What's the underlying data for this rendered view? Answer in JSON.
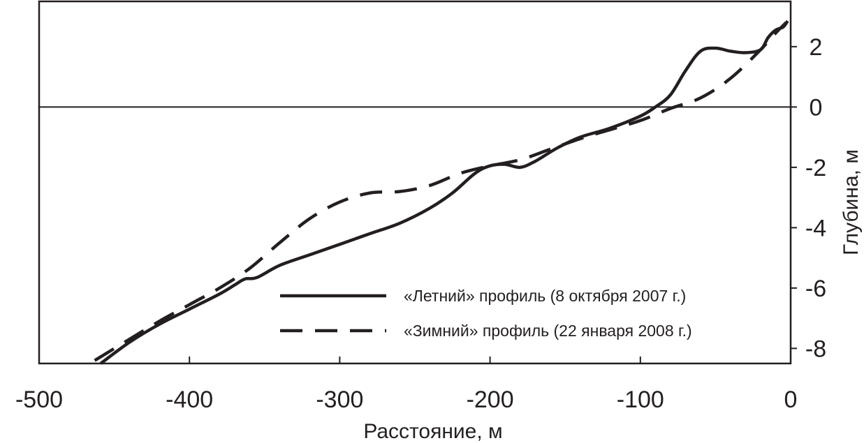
{
  "chart_data": {
    "type": "line",
    "xlabel": "Расстояние, м",
    "ylabel": "Глубина, м",
    "xlim": [
      -500,
      0
    ],
    "ylim": [
      -8.5,
      3.5
    ],
    "x_ticks": [
      "-500",
      "-400",
      "-300",
      "-200",
      "-100",
      "0"
    ],
    "y_ticks": [
      "2",
      "0",
      "-2",
      "-4",
      "-6",
      "-8"
    ],
    "reference_line_y": 0,
    "legend_position": "bottom-right",
    "series": [
      {
        "name": "«Летний» профиль (8 октября 2007 г.)",
        "style": "solid",
        "color": "#231f20",
        "points": [
          [
            -459,
            -8.5
          ],
          [
            -440,
            -7.8
          ],
          [
            -420,
            -7.2
          ],
          [
            -400,
            -6.7
          ],
          [
            -380,
            -6.2
          ],
          [
            -370,
            -5.9
          ],
          [
            -363,
            -5.7
          ],
          [
            -355,
            -5.65
          ],
          [
            -340,
            -5.25
          ],
          [
            -320,
            -4.9
          ],
          [
            -300,
            -4.55
          ],
          [
            -280,
            -4.2
          ],
          [
            -260,
            -3.85
          ],
          [
            -240,
            -3.35
          ],
          [
            -225,
            -2.85
          ],
          [
            -210,
            -2.2
          ],
          [
            -200,
            -1.95
          ],
          [
            -190,
            -1.9
          ],
          [
            -180,
            -2.0
          ],
          [
            -170,
            -1.8
          ],
          [
            -155,
            -1.35
          ],
          [
            -140,
            -1.0
          ],
          [
            -120,
            -0.7
          ],
          [
            -100,
            -0.3
          ],
          [
            -90,
            0.0
          ],
          [
            -80,
            0.4
          ],
          [
            -70,
            1.2
          ],
          [
            -60,
            1.85
          ],
          [
            -50,
            1.95
          ],
          [
            -40,
            1.85
          ],
          [
            -30,
            1.8
          ],
          [
            -20,
            1.9
          ],
          [
            -15,
            2.3
          ],
          [
            -10,
            2.55
          ],
          [
            -5,
            2.65
          ],
          [
            -2,
            2.85
          ]
        ]
      },
      {
        "name": "«Зимний» профиль (22 января 2008 г.)",
        "style": "dashed",
        "color": "#231f20",
        "points": [
          [
            -463,
            -8.4
          ],
          [
            -440,
            -7.7
          ],
          [
            -420,
            -7.1
          ],
          [
            -400,
            -6.55
          ],
          [
            -380,
            -6.0
          ],
          [
            -360,
            -5.35
          ],
          [
            -340,
            -4.5
          ],
          [
            -320,
            -3.7
          ],
          [
            -300,
            -3.15
          ],
          [
            -280,
            -2.85
          ],
          [
            -260,
            -2.8
          ],
          [
            -240,
            -2.6
          ],
          [
            -220,
            -2.2
          ],
          [
            -200,
            -1.95
          ],
          [
            -180,
            -1.75
          ],
          [
            -160,
            -1.4
          ],
          [
            -140,
            -1.05
          ],
          [
            -120,
            -0.75
          ],
          [
            -100,
            -0.45
          ],
          [
            -80,
            -0.05
          ],
          [
            -60,
            0.3
          ],
          [
            -40,
            0.95
          ],
          [
            -20,
            1.9
          ],
          [
            -10,
            2.45
          ],
          [
            -3,
            2.8
          ]
        ]
      }
    ]
  }
}
